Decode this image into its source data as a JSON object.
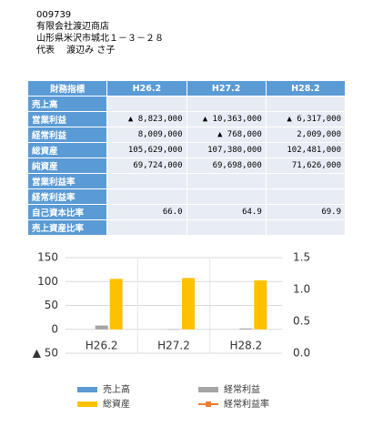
{
  "header": {
    "lines": [
      "009739",
      "有限会社渡辺商店",
      "山形県米沢市城北１－３－２８",
      "代表　 渡辺み さ子"
    ]
  },
  "table": {
    "columns": [
      "財務指標",
      "H26.2",
      "H27.2",
      "H28.2"
    ],
    "rows": [
      {
        "label": "売上高",
        "cells": [
          null,
          null,
          null
        ]
      },
      {
        "label": "営業利益",
        "cells": [
          "▲ 8,823,000",
          "▲ 10,363,000",
          "▲ 6,317,000"
        ]
      },
      {
        "label": "経常利益",
        "cells": [
          "8,009,000",
          "▲ 768,000",
          "2,009,000"
        ]
      },
      {
        "label": "総資産",
        "cells": [
          "105,629,000",
          "107,380,000",
          "102,481,000"
        ]
      },
      {
        "label": "純資産",
        "cells": [
          "69,724,000",
          "69,698,000",
          "71,626,000"
        ]
      },
      {
        "label": "営業利益率",
        "cells": [
          null,
          null,
          null
        ]
      },
      {
        "label": "経常利益率",
        "cells": [
          null,
          null,
          null
        ]
      },
      {
        "label": "自己資本比率",
        "cells": [
          "66.0",
          "64.9",
          "69.9"
        ]
      },
      {
        "label": "売上資産比率",
        "cells": [
          null,
          null,
          null
        ]
      }
    ]
  },
  "chart_data": {
    "type": "bar",
    "categories": [
      "H26.2",
      "H27.2",
      "H28.2"
    ],
    "series": [
      {
        "name": "売上高",
        "color": "#5b9bd5",
        "values": [
          null,
          null,
          null
        ]
      },
      {
        "name": "経常利益",
        "color": "#a5a5a5",
        "values": [
          8.0,
          -0.8,
          2.0
        ]
      },
      {
        "name": "総資産",
        "color": "#ffc000",
        "values": [
          105.6,
          107.4,
          102.5
        ]
      },
      {
        "name": "経常利益率",
        "color": "#ed7d31",
        "type": "line",
        "axis": "y2",
        "values": [
          null,
          null,
          null
        ]
      }
    ],
    "ylim": [
      -50,
      150
    ],
    "yticks": [
      {
        "value": -50,
        "label": "▲ 50"
      },
      0,
      50,
      100,
      150
    ],
    "y2lim": [
      0,
      1.5
    ],
    "y2ticks": [
      {
        "value": 0,
        "label": "0.0"
      },
      {
        "value": 0.5,
        "label": "0.5"
      },
      {
        "value": 1,
        "label": "1.0"
      },
      {
        "value": 1.5,
        "label": "1.5"
      }
    ],
    "grid": true
  }
}
